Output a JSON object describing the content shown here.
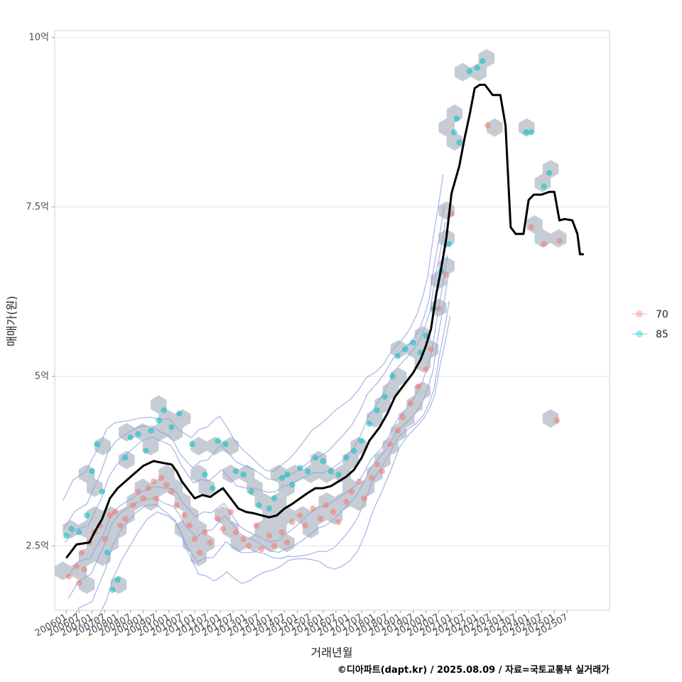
{
  "chart_data": {
    "type": "scatter",
    "xlabel": "거래년월",
    "ylabel": "매매가(원)",
    "caption": "©디아파트(dapt.kr) / 2025.08.09 / 자료=국토교통부 실거래가",
    "x_ticks": [
      "200601",
      "200607",
      "200701",
      "200707",
      "200801",
      "200807",
      "200901",
      "200907",
      "201001",
      "201007",
      "201101",
      "201107",
      "201201",
      "201207",
      "201301",
      "201307",
      "201401",
      "201407",
      "201501",
      "201507",
      "201601",
      "201607",
      "201701",
      "201707",
      "201801",
      "201807",
      "201901",
      "201907",
      "202001",
      "202007",
      "202101",
      "202107",
      "202201",
      "202207",
      "202301",
      "202307",
      "202401",
      "202407",
      "202501",
      "202507"
    ],
    "y_ticks": [
      {
        "value": 2.5,
        "label": "2.5억"
      },
      {
        "value": 5,
        "label": "5억"
      },
      {
        "value": 7.5,
        "label": "7.5억"
      },
      {
        "value": 10,
        "label": "10억"
      }
    ],
    "xlim": [
      2005.55,
      2027.15
    ],
    "ylim": [
      1.55,
      10.1
    ],
    "grid": true,
    "legend_position": "right",
    "colors": {
      "70": "#F8766D",
      "85": "#00BFC4",
      "trend": "#000000",
      "hex": "#BCC3CB",
      "contour": "#8FA1E0"
    },
    "series": [
      {
        "name": "70",
        "points": [
          [
            2006.1,
            2.05
          ],
          [
            2006.4,
            2.2
          ],
          [
            2006.5,
            1.95
          ],
          [
            2006.6,
            2.4
          ],
          [
            2006.7,
            2.15
          ],
          [
            2006.9,
            2.55
          ],
          [
            2007.1,
            2.7
          ],
          [
            2007.3,
            2.8
          ],
          [
            2007.5,
            2.6
          ],
          [
            2007.7,
            2.95
          ],
          [
            2007.9,
            3.0
          ],
          [
            2008.1,
            2.8
          ],
          [
            2008.3,
            2.9
          ],
          [
            2008.6,
            3.1
          ],
          [
            2008.8,
            3.3
          ],
          [
            2009.0,
            3.2
          ],
          [
            2009.2,
            3.35
          ],
          [
            2009.4,
            3.45
          ],
          [
            2009.5,
            3.2
          ],
          [
            2009.7,
            3.5
          ],
          [
            2009.9,
            3.4
          ],
          [
            2010.1,
            3.3
          ],
          [
            2010.3,
            3.1
          ],
          [
            2010.6,
            2.95
          ],
          [
            2010.8,
            2.8
          ],
          [
            2011.0,
            2.6
          ],
          [
            2011.2,
            2.4
          ],
          [
            2011.4,
            2.7
          ],
          [
            2011.6,
            2.55
          ],
          [
            2011.9,
            2.9
          ],
          [
            2012.1,
            2.75
          ],
          [
            2012.4,
            3.0
          ],
          [
            2012.6,
            2.7
          ],
          [
            2012.9,
            2.6
          ],
          [
            2013.1,
            2.5
          ],
          [
            2013.4,
            2.8
          ],
          [
            2013.6,
            2.45
          ],
          [
            2013.9,
            2.65
          ],
          [
            2014.1,
            2.5
          ],
          [
            2014.4,
            2.7
          ],
          [
            2014.6,
            2.55
          ],
          [
            2014.8,
            2.85
          ],
          [
            2015.1,
            2.95
          ],
          [
            2015.3,
            2.8
          ],
          [
            2015.6,
            3.05
          ],
          [
            2015.9,
            2.9
          ],
          [
            2016.1,
            3.1
          ],
          [
            2016.4,
            3.0
          ],
          [
            2016.6,
            2.85
          ],
          [
            2016.9,
            3.15
          ],
          [
            2017.1,
            3.3
          ],
          [
            2017.4,
            3.45
          ],
          [
            2017.6,
            3.2
          ],
          [
            2017.9,
            3.5
          ],
          [
            2018.1,
            3.7
          ],
          [
            2018.3,
            3.6
          ],
          [
            2018.6,
            4.0
          ],
          [
            2018.9,
            4.2
          ],
          [
            2019.1,
            4.4
          ],
          [
            2019.4,
            4.6
          ],
          [
            2019.7,
            4.85
          ],
          [
            2020.0,
            5.1
          ],
          [
            2020.2,
            5.4
          ],
          [
            2020.5,
            6.0
          ],
          [
            2020.8,
            6.5
          ],
          [
            2021.0,
            7.4
          ],
          [
            2022.4,
            8.7
          ],
          [
            2024.1,
            7.2
          ],
          [
            2024.6,
            6.95
          ],
          [
            2025.2,
            7.0
          ],
          [
            2025.1,
            4.35
          ]
        ]
      },
      {
        "name": "85",
        "points": [
          [
            2006.0,
            2.65
          ],
          [
            2006.2,
            2.75
          ],
          [
            2006.5,
            2.7
          ],
          [
            2006.8,
            2.95
          ],
          [
            2007.0,
            3.6
          ],
          [
            2007.2,
            4.0
          ],
          [
            2007.4,
            3.3
          ],
          [
            2007.6,
            2.4
          ],
          [
            2007.8,
            1.85
          ],
          [
            2008.0,
            2.0
          ],
          [
            2008.3,
            3.8
          ],
          [
            2008.5,
            4.1
          ],
          [
            2008.8,
            4.15
          ],
          [
            2009.1,
            3.9
          ],
          [
            2009.3,
            4.2
          ],
          [
            2009.6,
            4.35
          ],
          [
            2009.8,
            4.5
          ],
          [
            2010.1,
            4.25
          ],
          [
            2010.4,
            4.45
          ],
          [
            2010.9,
            4.0
          ],
          [
            2011.4,
            3.55
          ],
          [
            2011.7,
            3.35
          ],
          [
            2011.9,
            4.05
          ],
          [
            2012.2,
            4.0
          ],
          [
            2012.6,
            3.6
          ],
          [
            2012.9,
            3.55
          ],
          [
            2013.2,
            3.3
          ],
          [
            2013.5,
            3.1
          ],
          [
            2013.9,
            3.05
          ],
          [
            2014.1,
            3.2
          ],
          [
            2014.4,
            3.5
          ],
          [
            2014.6,
            3.55
          ],
          [
            2014.8,
            3.4
          ],
          [
            2015.1,
            3.65
          ],
          [
            2015.4,
            3.6
          ],
          [
            2015.7,
            3.8
          ],
          [
            2016.0,
            3.75
          ],
          [
            2016.3,
            3.6
          ],
          [
            2016.6,
            3.55
          ],
          [
            2016.9,
            3.8
          ],
          [
            2017.2,
            3.9
          ],
          [
            2017.5,
            4.05
          ],
          [
            2017.8,
            4.3
          ],
          [
            2018.1,
            4.5
          ],
          [
            2018.4,
            4.7
          ],
          [
            2018.7,
            5.0
          ],
          [
            2018.9,
            5.3
          ],
          [
            2019.2,
            5.4
          ],
          [
            2019.5,
            5.5
          ],
          [
            2019.8,
            5.35
          ],
          [
            2020.0,
            5.6
          ],
          [
            2020.3,
            6.0
          ],
          [
            2020.6,
            6.55
          ],
          [
            2020.9,
            6.95
          ],
          [
            2021.1,
            8.6
          ],
          [
            2021.2,
            8.8
          ],
          [
            2021.3,
            8.45
          ],
          [
            2021.7,
            9.5
          ],
          [
            2022.0,
            9.55
          ],
          [
            2022.2,
            9.65
          ],
          [
            2023.9,
            8.6
          ],
          [
            2024.1,
            8.6
          ],
          [
            2024.6,
            7.8
          ],
          [
            2024.8,
            8.0
          ]
        ]
      }
    ],
    "trend": [
      [
        2006.0,
        2.32
      ],
      [
        2006.2,
        2.42
      ],
      [
        2006.4,
        2.52
      ],
      [
        2006.9,
        2.55
      ],
      [
        2007.1,
        2.7
      ],
      [
        2007.4,
        2.9
      ],
      [
        2007.7,
        3.2
      ],
      [
        2008.0,
        3.35
      ],
      [
        2008.3,
        3.45
      ],
      [
        2008.6,
        3.55
      ],
      [
        2009.0,
        3.68
      ],
      [
        2009.4,
        3.75
      ],
      [
        2009.8,
        3.72
      ],
      [
        2010.1,
        3.7
      ],
      [
        2010.3,
        3.6
      ],
      [
        2010.5,
        3.45
      ],
      [
        2010.8,
        3.3
      ],
      [
        2011.0,
        3.2
      ],
      [
        2011.3,
        3.25
      ],
      [
        2011.6,
        3.22
      ],
      [
        2011.9,
        3.3
      ],
      [
        2012.1,
        3.35
      ],
      [
        2012.4,
        3.2
      ],
      [
        2012.7,
        3.05
      ],
      [
        2013.0,
        3.0
      ],
      [
        2013.3,
        2.98
      ],
      [
        2013.6,
        2.95
      ],
      [
        2013.9,
        2.92
      ],
      [
        2014.2,
        2.95
      ],
      [
        2014.5,
        3.05
      ],
      [
        2014.8,
        3.12
      ],
      [
        2015.1,
        3.2
      ],
      [
        2015.4,
        3.28
      ],
      [
        2015.7,
        3.35
      ],
      [
        2016.0,
        3.35
      ],
      [
        2016.3,
        3.38
      ],
      [
        2016.6,
        3.45
      ],
      [
        2016.9,
        3.52
      ],
      [
        2017.2,
        3.62
      ],
      [
        2017.5,
        3.8
      ],
      [
        2017.8,
        4.05
      ],
      [
        2018.0,
        4.15
      ],
      [
        2018.2,
        4.25
      ],
      [
        2018.5,
        4.45
      ],
      [
        2018.8,
        4.7
      ],
      [
        2019.0,
        4.8
      ],
      [
        2019.2,
        4.9
      ],
      [
        2019.5,
        5.05
      ],
      [
        2019.8,
        5.25
      ],
      [
        2020.0,
        5.45
      ],
      [
        2020.2,
        5.7
      ],
      [
        2020.4,
        6.2
      ],
      [
        2020.6,
        6.6
      ],
      [
        2020.8,
        7.05
      ],
      [
        2021.0,
        7.7
      ],
      [
        2021.3,
        8.1
      ],
      [
        2021.5,
        8.5
      ],
      [
        2021.7,
        8.85
      ],
      [
        2021.9,
        9.25
      ],
      [
        2022.1,
        9.3
      ],
      [
        2022.3,
        9.3
      ],
      [
        2022.6,
        9.15
      ],
      [
        2022.9,
        9.15
      ],
      [
        2023.1,
        8.7
      ],
      [
        2023.3,
        7.2
      ],
      [
        2023.5,
        7.1
      ],
      [
        2023.8,
        7.1
      ],
      [
        2024.0,
        7.6
      ],
      [
        2024.2,
        7.68
      ],
      [
        2024.5,
        7.68
      ],
      [
        2024.8,
        7.72
      ],
      [
        2025.0,
        7.72
      ],
      [
        2025.2,
        7.3
      ],
      [
        2025.4,
        7.32
      ],
      [
        2025.7,
        7.3
      ],
      [
        2025.9,
        7.1
      ],
      [
        2026.0,
        6.8
      ],
      [
        2026.15,
        6.8
      ]
    ]
  }
}
